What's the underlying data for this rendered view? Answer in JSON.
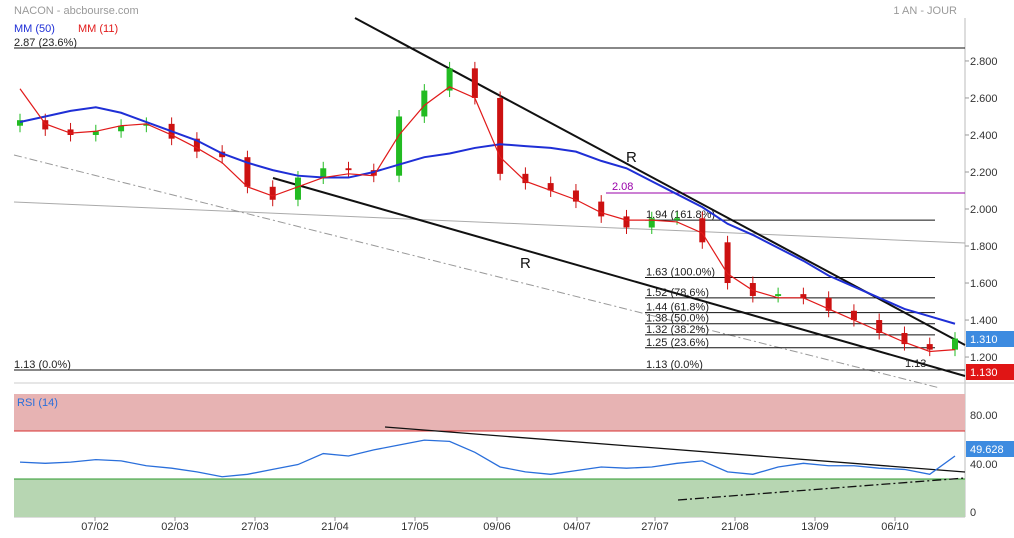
{
  "header": {
    "title": "NACON - abcbourse.com",
    "period": "1 AN - JOUR"
  },
  "legend": {
    "ma50": "MM (50)",
    "ma11": "MM (11)"
  },
  "colors": {
    "ma50": "#1f2fd6",
    "ma11": "#e11a1a",
    "up": "#22bb22",
    "down": "#cc1111",
    "fib_top": "#9900aa",
    "rsi_line": "#2a6fdb",
    "rsi_over": "#e9b5b5",
    "rsi_under": "#b5d7b0",
    "price_badge": "#3d8be0",
    "low_badge": "#e01515"
  },
  "price_panel": {
    "y_ticks": [
      "2.800",
      "2.600",
      "2.400",
      "2.200",
      "2.000",
      "1.800",
      "1.600",
      "1.400",
      "1.200"
    ],
    "y_range": [
      1.105,
      2.96
    ],
    "last_price": "1.310",
    "low_price": "1.130",
    "left_top_level": "2.87  (23.6%)",
    "left_bottom_level": "1.13  (0.0%)",
    "fib_top_label": "2.08",
    "fib_levels": [
      {
        "value": 1.94,
        "label": "1.94  (161.8%)"
      },
      {
        "value": 1.63,
        "label": "1.63  (100.0%)"
      },
      {
        "value": 1.52,
        "label": "1.52  (78.6%)"
      },
      {
        "value": 1.44,
        "label": "1.44  (61.8%)"
      },
      {
        "value": 1.38,
        "label": "1.38  (50.0%)"
      },
      {
        "value": 1.32,
        "label": "1.32  (38.2%)"
      },
      {
        "value": 1.25,
        "label": "1.25  (23.6%)"
      },
      {
        "value": 1.13,
        "label": "1.13  (0.0%)"
      }
    ],
    "extra_low_label": "1.13",
    "annotations": [
      "R",
      "R"
    ]
  },
  "rsi_panel": {
    "title": "RSI (14)",
    "y_ticks": [
      "80.00",
      "40.00",
      "0"
    ],
    "value": "49.628",
    "overbought": 70,
    "oversold": 30
  },
  "x_ticks": [
    "07/02",
    "02/03",
    "27/03",
    "21/04",
    "17/05",
    "09/06",
    "04/07",
    "27/07",
    "21/08",
    "13/09",
    "06/10"
  ],
  "chart_data": {
    "type": "candlestick",
    "title": "NACON",
    "x_dates": [
      "02/01",
      "10/01",
      "18/01",
      "26/01",
      "03/02",
      "11/02",
      "19/02",
      "27/02",
      "07/03",
      "15/03",
      "23/03",
      "31/03",
      "08/04",
      "16/04",
      "24/04",
      "02/05",
      "10/05",
      "18/05",
      "26/05",
      "03/06",
      "11/06",
      "19/06",
      "27/06",
      "05/07",
      "13/07",
      "21/07",
      "29/07",
      "06/08",
      "14/08",
      "22/08",
      "30/08",
      "07/09",
      "15/09",
      "23/09",
      "01/10",
      "09/10",
      "17/10",
      "25/10"
    ],
    "close": [
      2.48,
      2.43,
      2.4,
      2.42,
      2.45,
      2.46,
      2.38,
      2.31,
      2.28,
      2.12,
      2.05,
      2.17,
      2.22,
      2.21,
      2.18,
      2.5,
      2.64,
      2.76,
      2.6,
      2.19,
      2.14,
      2.1,
      2.04,
      1.96,
      1.9,
      1.95,
      1.95,
      1.82,
      1.6,
      1.53,
      1.54,
      1.52,
      1.45,
      1.4,
      1.33,
      1.27,
      1.24,
      1.3
    ],
    "ma50": [
      2.47,
      2.5,
      2.53,
      2.55,
      2.52,
      2.47,
      2.42,
      2.37,
      2.3,
      2.25,
      2.21,
      2.18,
      2.17,
      2.17,
      2.2,
      2.24,
      2.28,
      2.3,
      2.33,
      2.35,
      2.34,
      2.33,
      2.31,
      2.26,
      2.22,
      2.15,
      2.08,
      2.01,
      1.92,
      1.86,
      1.79,
      1.72,
      1.64,
      1.58,
      1.52,
      1.46,
      1.42,
      1.38
    ],
    "ma11": [
      2.65,
      2.46,
      2.41,
      2.42,
      2.45,
      2.46,
      2.4,
      2.33,
      2.25,
      2.12,
      2.07,
      2.12,
      2.17,
      2.19,
      2.18,
      2.4,
      2.56,
      2.66,
      2.6,
      2.28,
      2.15,
      2.1,
      2.05,
      1.98,
      1.94,
      1.94,
      1.93,
      1.87,
      1.65,
      1.56,
      1.52,
      1.52,
      1.46,
      1.4,
      1.34,
      1.28,
      1.23,
      1.24
    ],
    "rsi": [
      45,
      44,
      45,
      47,
      46,
      42,
      40,
      37,
      33,
      35,
      39,
      43,
      52,
      50,
      55,
      59,
      63,
      62,
      53,
      41,
      37,
      35,
      38,
      41,
      40,
      41,
      44,
      46,
      37,
      35,
      41,
      44,
      42,
      42,
      40,
      39,
      35,
      50
    ]
  }
}
